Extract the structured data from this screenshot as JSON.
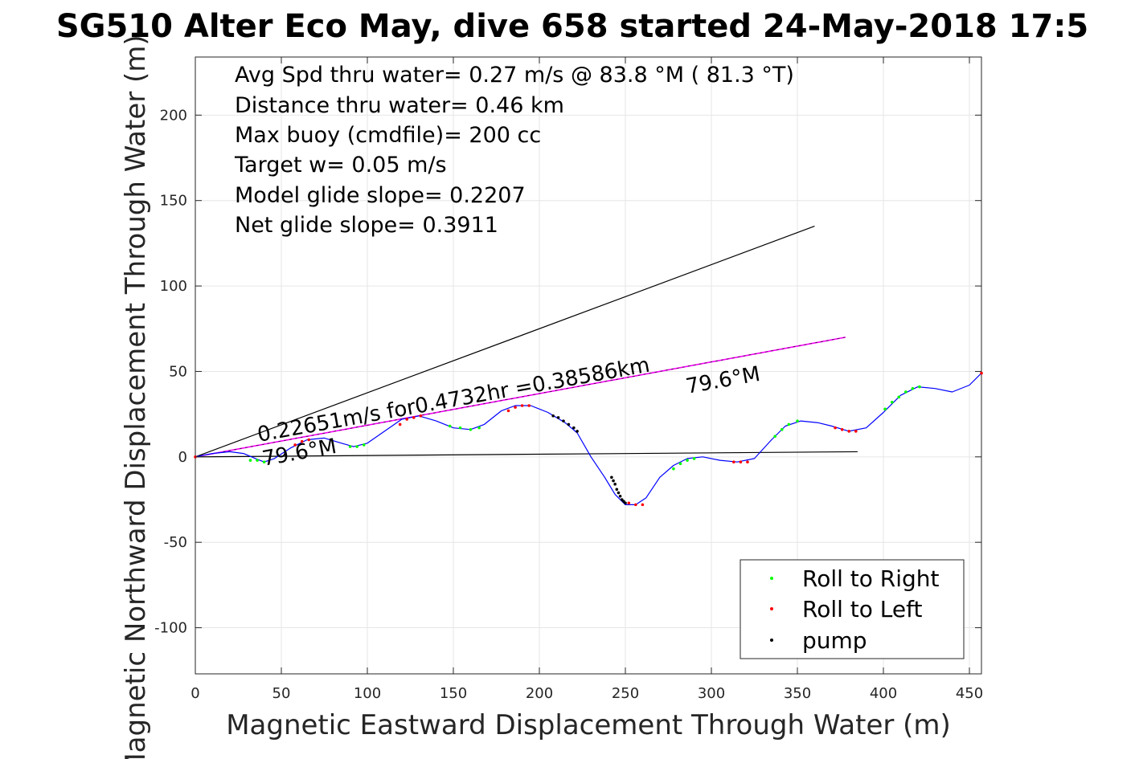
{
  "colors": {
    "track": "#0000ff",
    "roll_right": "#00ff00",
    "roll_left": "#ff0000",
    "pump": "#000000",
    "model_line": "#ff00ff",
    "reference_lines": "#000000",
    "grid": "#e6e6e6"
  },
  "chart_data": {
    "type": "line",
    "title": "SG510 Alter Eco May, dive 658 started 24-May-2018 17:5",
    "xlabel": "Magnetic Eastward Displacement Through Water (m)",
    "ylabel": "Magnetic Northward Displacement Through Water (m)",
    "xlim": [
      0,
      457
    ],
    "ylim": [
      -127,
      234
    ],
    "xticks": [
      0,
      50,
      100,
      150,
      200,
      250,
      300,
      350,
      400,
      450
    ],
    "yticks": [
      -100,
      -50,
      0,
      50,
      100,
      150,
      200
    ],
    "grid": true,
    "stats_text": [
      "Avg Spd thru water=  0.27 m/s @  83.8 °M ( 81.3 °T)",
      "Distance thru water=  0.46 km",
      "Max buoy (cmdfile)= 200 cc",
      "Target w= 0.05 m/s",
      "Model glide slope= 0.2207",
      "Net glide slope= 0.3911"
    ],
    "annotations": [
      {
        "text": "0.22651m/s for0.4732hr =0.38586km",
        "x": 37,
        "y": 7
      },
      {
        "text": "79.6°M",
        "x": 38,
        "y": -4
      },
      {
        "text": "79.6°M",
        "x": 285,
        "y": 37
      }
    ],
    "series": [
      {
        "name": "track",
        "style": "line",
        "x": [
          0,
          10,
          20,
          28,
          35,
          40,
          46,
          55,
          65,
          75,
          85,
          92,
          100,
          110,
          120,
          130,
          140,
          150,
          160,
          168,
          178,
          186,
          195,
          205,
          215,
          222,
          230,
          238,
          244,
          250,
          256,
          262,
          270,
          278,
          286,
          295,
          305,
          315,
          325,
          335,
          343,
          352,
          362,
          370,
          380,
          390,
          400,
          410,
          420,
          430,
          440,
          450,
          457
        ],
        "y": [
          0,
          2,
          3,
          2,
          -1,
          -3,
          -1,
          5,
          10,
          11,
          8,
          6,
          8,
          15,
          22,
          24,
          21,
          17,
          16,
          19,
          27,
          30,
          30,
          26,
          20,
          14,
          0,
          -12,
          -22,
          -28,
          -28,
          -24,
          -12,
          -5,
          -1,
          0,
          -2,
          -3,
          -1,
          10,
          18,
          21,
          20,
          18,
          15,
          17,
          26,
          36,
          41,
          40,
          38,
          42,
          49
        ]
      },
      {
        "name": "Roll to Right",
        "style": "markers",
        "x": [
          32,
          36,
          40,
          90,
          94,
          98,
          148,
          154,
          160,
          165,
          278,
          282,
          286,
          290,
          337,
          341,
          345,
          350,
          401,
          405,
          409,
          413,
          417,
          421
        ],
        "y": [
          -2,
          -2,
          -3,
          6,
          6,
          7,
          18,
          17,
          16,
          17,
          -7,
          -4,
          -2,
          -1,
          12,
          16,
          19,
          21,
          28,
          32,
          35,
          38,
          40,
          41
        ]
      },
      {
        "name": "Roll to Left",
        "style": "markers",
        "x": [
          0,
          58,
          62,
          66,
          119,
          123,
          127,
          131,
          182,
          186,
          190,
          194,
          252,
          256,
          260,
          313,
          317,
          321,
          372,
          376,
          380,
          384,
          457
        ],
        "y": [
          0,
          7,
          9,
          10,
          19,
          22,
          23,
          24,
          27,
          29,
          30,
          30,
          -27,
          -28,
          -28,
          -3,
          -3,
          -3,
          17,
          16,
          15,
          15,
          49
        ]
      },
      {
        "name": "pump",
        "style": "markers",
        "x": [
          208,
          211,
          214,
          217,
          220,
          222,
          242,
          243,
          244,
          245,
          246,
          247,
          248,
          249,
          250
        ],
        "y": [
          24,
          23,
          21,
          19,
          17,
          15,
          -12,
          -14,
          -16,
          -19,
          -21,
          -23,
          -25,
          -26,
          -27
        ]
      },
      {
        "name": "model glide line",
        "style": "reference",
        "x": [
          0,
          378
        ],
        "y": [
          0,
          70
        ]
      },
      {
        "name": "upper reference line",
        "style": "reference",
        "x": [
          0,
          360
        ],
        "y": [
          0,
          135
        ]
      },
      {
        "name": "lower reference line",
        "style": "reference",
        "x": [
          0,
          385
        ],
        "y": [
          0,
          3
        ]
      }
    ],
    "legend": {
      "position": "bottom-right",
      "entries": [
        "Roll to Right",
        "Roll to Left",
        "pump"
      ]
    }
  }
}
